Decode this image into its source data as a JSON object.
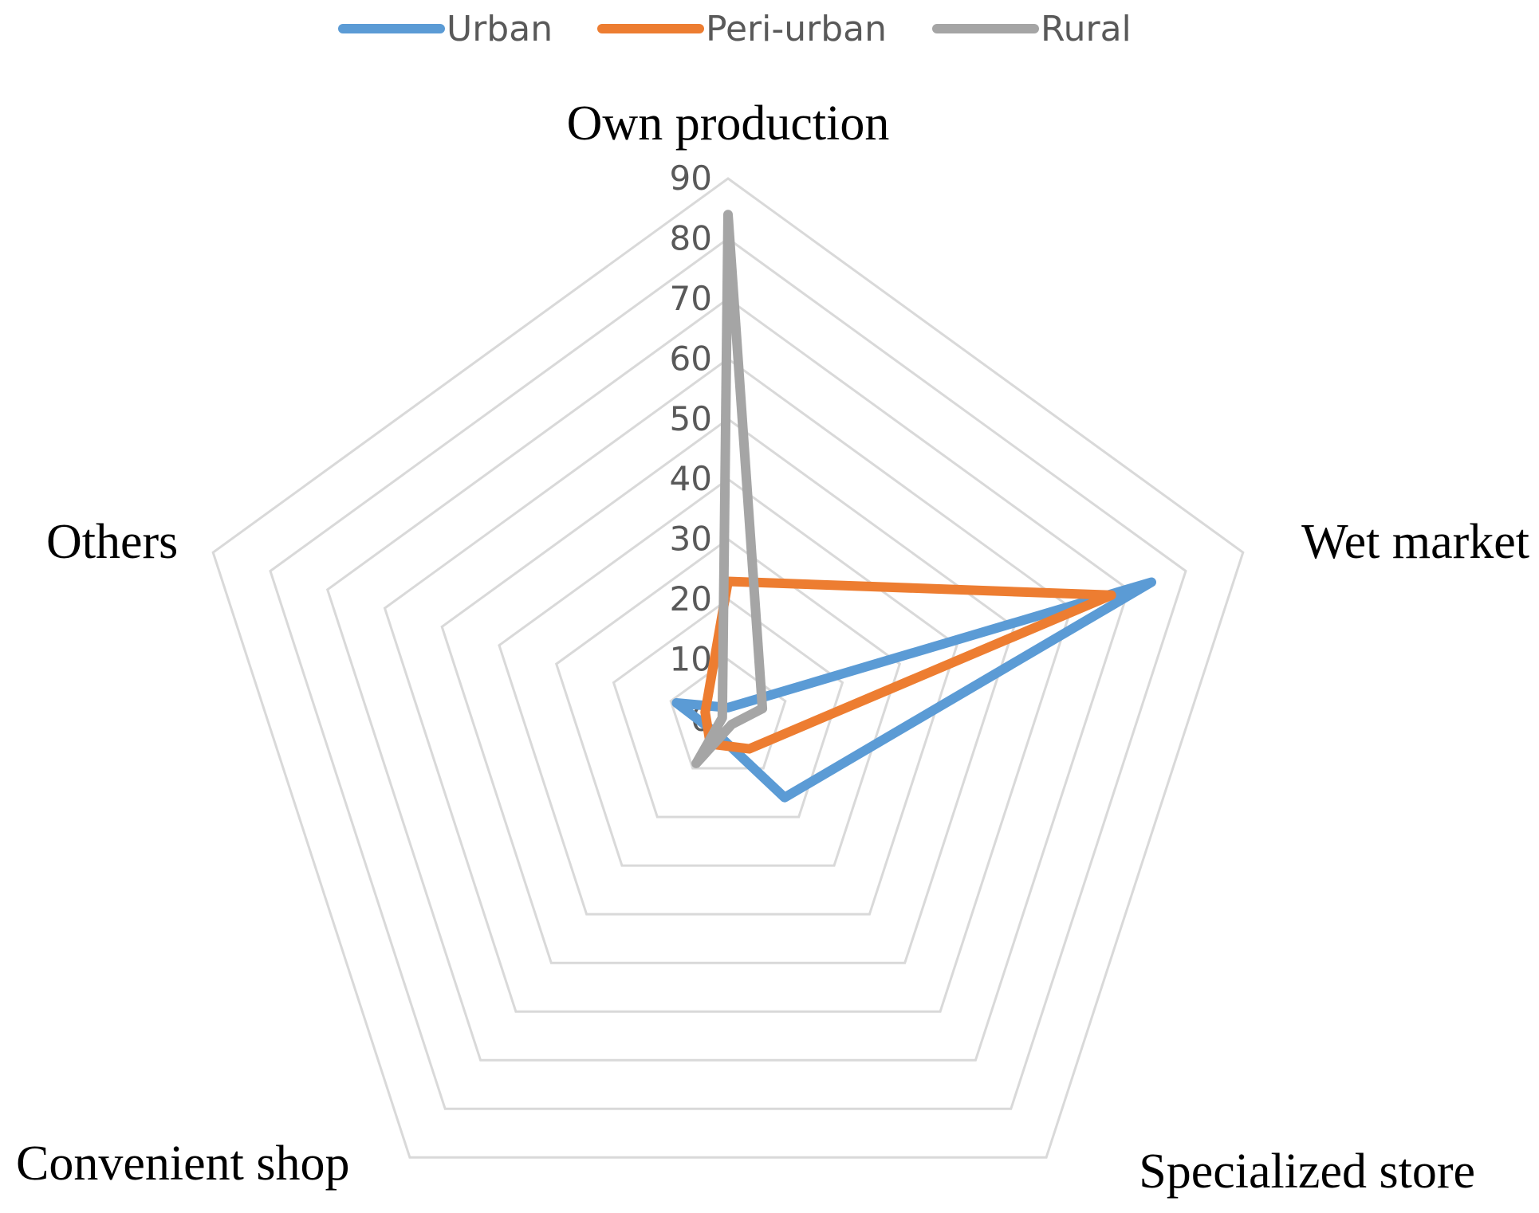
{
  "chart_data": {
    "type": "radar",
    "categories": [
      "Own production",
      "Wet market",
      "Specialized store",
      "Convenient shop",
      "Others"
    ],
    "series": [
      {
        "name": "Urban",
        "values": [
          2,
          74,
          16,
          3,
          9
        ]
      },
      {
        "name": "Peri-urban",
        "values": [
          23,
          67,
          6,
          5,
          4
        ]
      },
      {
        "name": "Rural",
        "values": [
          84,
          6,
          1,
          9,
          1
        ]
      }
    ],
    "rlim": [
      0,
      90
    ],
    "ticks": [
      "0",
      "10",
      "20",
      "30",
      "40",
      "50",
      "60",
      "70",
      "80",
      "90"
    ],
    "legend_position": "top",
    "grid": true,
    "colors": {
      "Urban": "#5b9bd5",
      "Peri-urban": "#ed7d31",
      "Rural": "#a5a5a5"
    }
  }
}
